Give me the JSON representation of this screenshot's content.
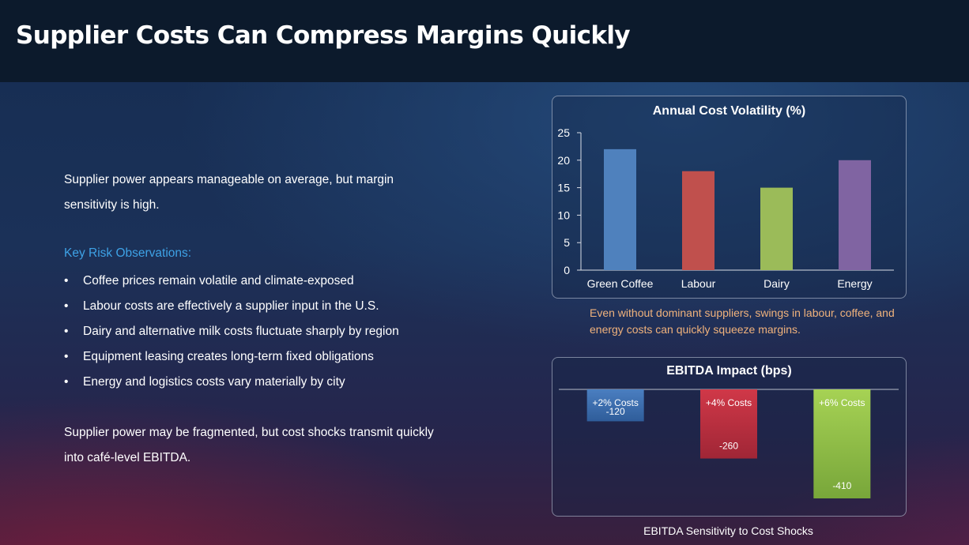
{
  "title": "Supplier Costs Can Compress Margins Quickly",
  "intro": "Supplier power appears manageable on average, but margin sensitivity is high.",
  "risk_heading": "Key Risk Observations:",
  "risks": [
    "Coffee prices remain volatile and climate-exposed",
    "Labour costs are effectively a supplier input in the U.S.",
    "Dairy and alternative milk costs fluctuate sharply by region",
    "Equipment leasing creates long-term fixed obligations",
    "Energy and logistics costs vary materially by city"
  ],
  "bullet_char": "•",
  "conclusion": "Supplier power may be fragmented, but cost shocks transmit quickly into café-level EBITDA.",
  "caption_volatility": "Even without dominant suppliers, swings in labour, coffee, and energy costs can quickly squeeze margins.",
  "caption_ebitda": "EBITDA Sensitivity to Cost Shocks",
  "chart_data": [
    {
      "type": "bar",
      "title": "Annual Cost Volatility (%)",
      "categories": [
        "Green Coffee",
        "Labour",
        "Dairy",
        "Energy"
      ],
      "values": [
        22,
        18,
        15,
        20
      ],
      "colors": [
        "#4f81bd",
        "#c0504d",
        "#9bbb59",
        "#8064a2"
      ],
      "ylim": [
        0,
        25
      ],
      "yticks": [
        0,
        5,
        10,
        15,
        20,
        25
      ],
      "grid": false,
      "legend": "none"
    },
    {
      "type": "bar",
      "title": "EBITDA Impact (bps)",
      "categories": [
        "+2% Costs",
        "+4% Costs",
        "+6% Costs"
      ],
      "values": [
        -120,
        -260,
        -410
      ],
      "data_labels": [
        "-120",
        "-260",
        "-410"
      ],
      "colors": [
        "#4f81bd",
        "#c0504d",
        "#9bbb59"
      ],
      "ylim": [
        -410,
        0
      ],
      "grid": false,
      "legend": "none"
    }
  ]
}
